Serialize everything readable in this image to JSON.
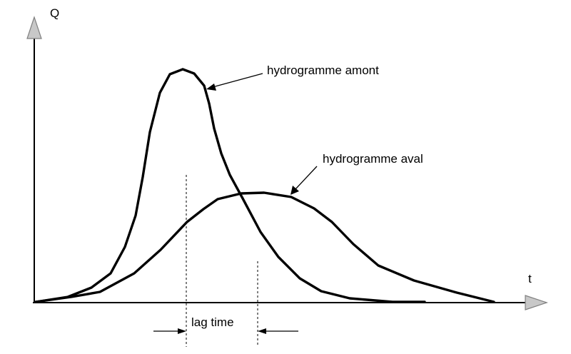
{
  "axes": {
    "y_label": "Q",
    "x_label": "t"
  },
  "labels": {
    "upstream": "hydrogramme amont",
    "downstream": "hydrogramme aval",
    "lag": "lag time"
  },
  "icons": {
    "axis_arrow": "triangle-arrow-icon"
  }
}
